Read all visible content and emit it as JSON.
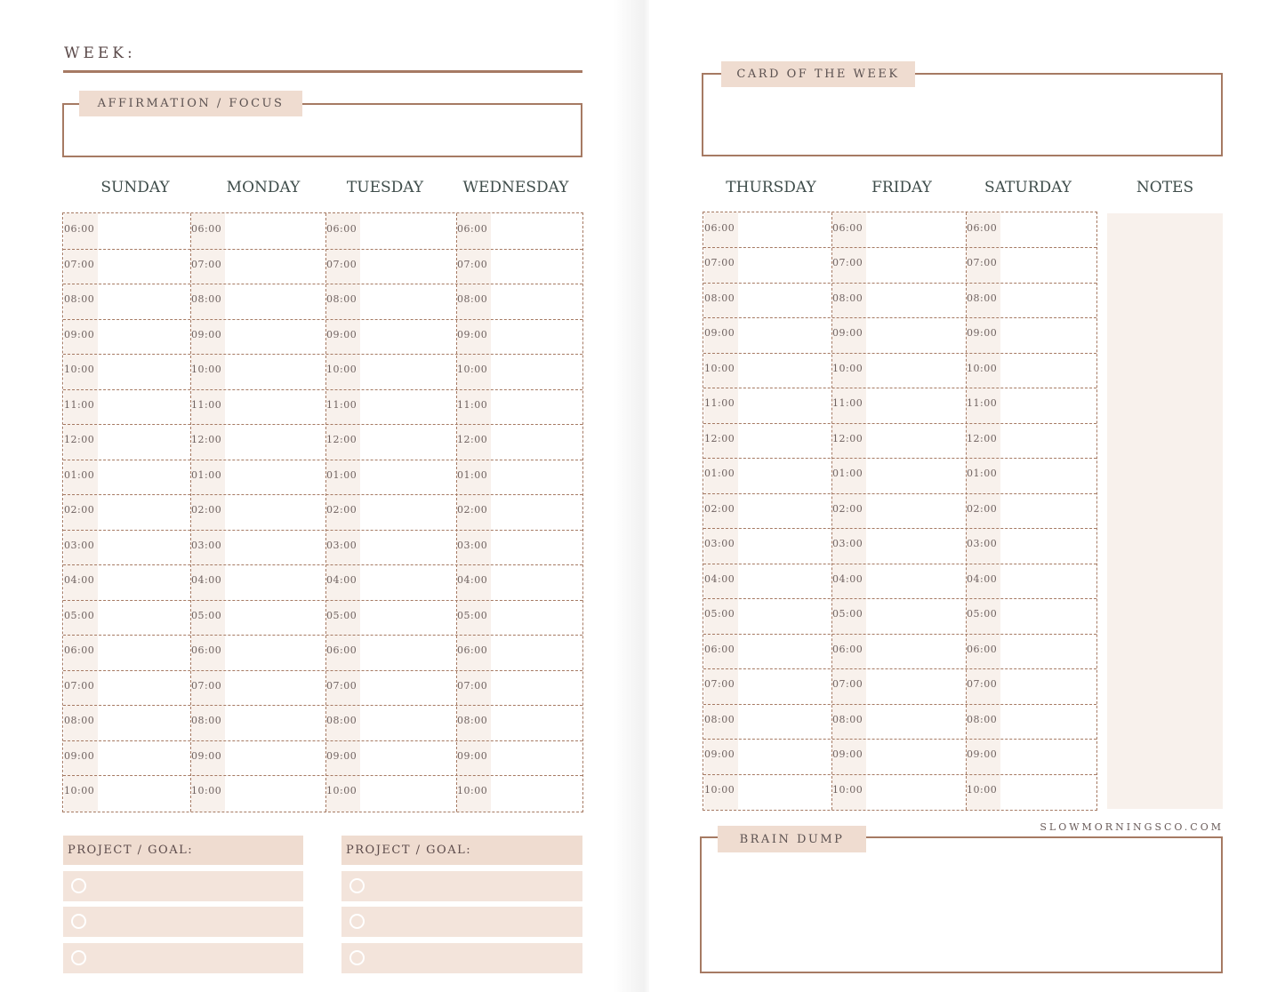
{
  "left": {
    "week_label": "WEEK:",
    "affirmation_label": "AFFIRMATION / FOCUS",
    "days": [
      "SUNDAY",
      "MONDAY",
      "TUESDAY",
      "WEDNESDAY"
    ],
    "project_label": "PROJECT / GOAL:"
  },
  "right": {
    "card_label": "CARD OF THE WEEK",
    "days": [
      "THURSDAY",
      "FRIDAY",
      "SATURDAY"
    ],
    "notes_label": "NOTES",
    "website": "SLOWMORNINGSCO.COM",
    "brain_dump_label": "BRAIN DUMP"
  },
  "times": [
    "06:00",
    "07:00",
    "08:00",
    "09:00",
    "10:00",
    "11:00",
    "12:00",
    "01:00",
    "02:00",
    "03:00",
    "04:00",
    "05:00",
    "06:00",
    "07:00",
    "08:00",
    "09:00",
    "10:00"
  ],
  "colors": {
    "accent": "#a67a63",
    "tag": "#efdcd0",
    "tint": "#f8f1ec"
  }
}
